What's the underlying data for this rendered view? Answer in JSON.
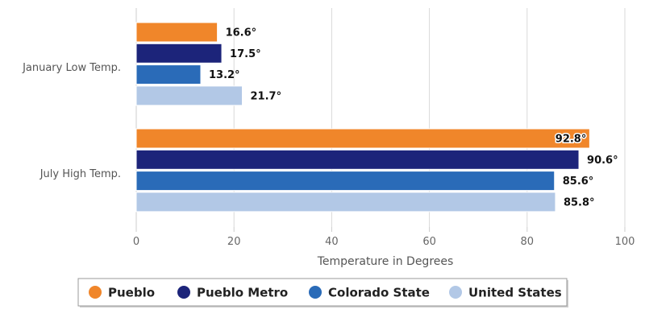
{
  "chart_data": {
    "type": "bar",
    "orientation": "horizontal",
    "categories": [
      "January Low Temp.",
      "July High Temp."
    ],
    "series": [
      {
        "name": "Pueblo",
        "color": "#F0862A",
        "values": [
          16.6,
          92.8
        ],
        "labels": [
          "16.6°",
          "92.8°"
        ]
      },
      {
        "name": "Pueblo Metro",
        "color": "#1C247A",
        "values": [
          17.5,
          90.6
        ],
        "labels": [
          "17.5°",
          "90.6°"
        ]
      },
      {
        "name": "Colorado State",
        "color": "#2A6BB8",
        "values": [
          13.2,
          85.6
        ],
        "labels": [
          "13.2°",
          "85.6°"
        ]
      },
      {
        "name": "United States",
        "color": "#B2C8E6",
        "values": [
          21.7,
          85.8
        ],
        "labels": [
          "21.7°",
          "85.8°"
        ]
      }
    ],
    "xlabel": "Temperature in Degrees",
    "xlim": [
      0,
      100
    ],
    "xticks": [
      "0",
      "20",
      "40",
      "60",
      "80",
      "100"
    ],
    "grid": true,
    "legend_position": "bottom"
  }
}
